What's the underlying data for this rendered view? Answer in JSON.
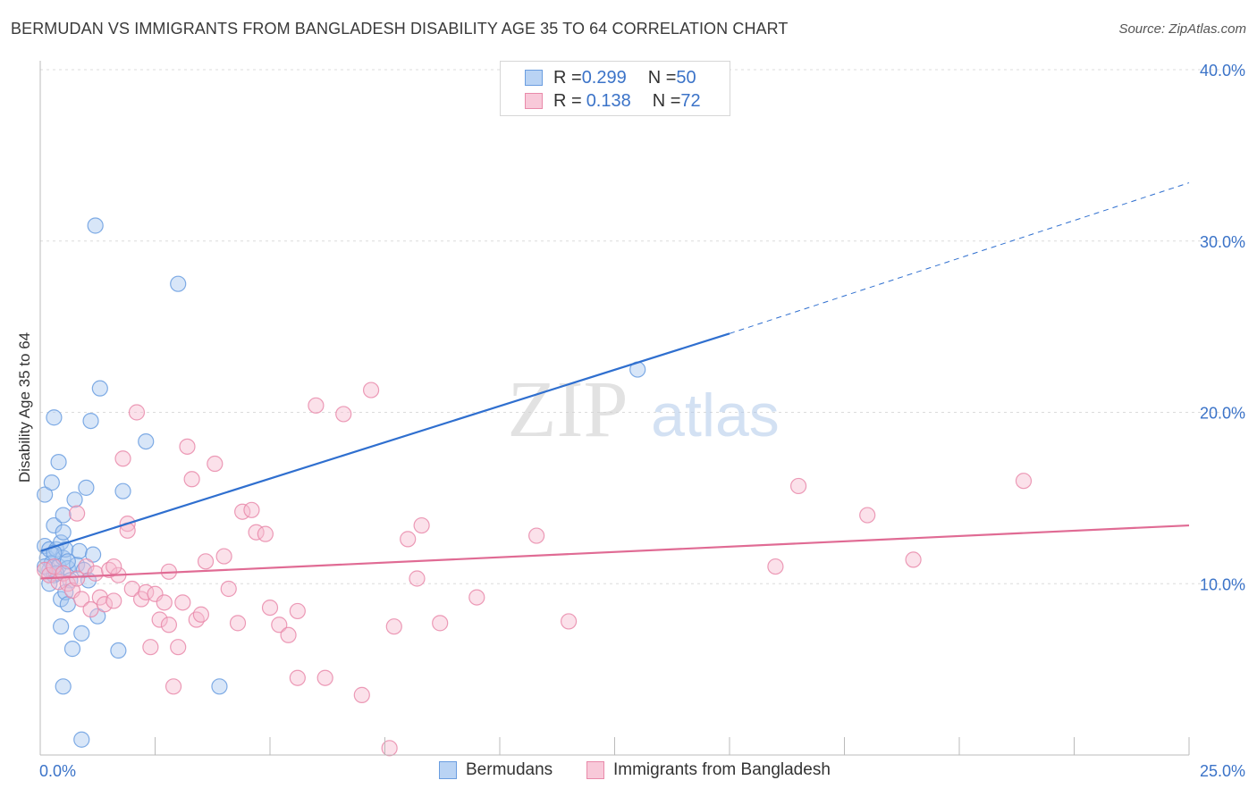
{
  "title": "BERMUDAN VS IMMIGRANTS FROM BANGLADESH DISABILITY AGE 35 TO 64 CORRELATION CHART",
  "source": "Source: ZipAtlas.com",
  "watermark": {
    "zip": "ZIP",
    "atlas": "atlas"
  },
  "legend_top": [
    {
      "r_label": "R = ",
      "r_value": "0.299",
      "n_label": "N = ",
      "n_value": "50"
    },
    {
      "r_label": "R = ",
      "r_value": "0.138",
      "n_label": "N = ",
      "n_value": "72"
    }
  ],
  "chart_data": {
    "type": "scatter",
    "title": "BERMUDAN VS IMMIGRANTS FROM BANGLADESH DISABILITY AGE 35 TO 64 CORRELATION CHART",
    "xlabel": "",
    "ylabel": "Disability Age 35 to 64",
    "xlim": [
      0,
      25
    ],
    "ylim": [
      0,
      40
    ],
    "x_tick_labels": [
      "0.0%",
      "25.0%"
    ],
    "y_tick_values": [
      10,
      20,
      30,
      40
    ],
    "y_tick_labels": [
      "10.0%",
      "20.0%",
      "30.0%",
      "40.0%"
    ],
    "legend_position": "bottom-center",
    "series": [
      {
        "name": "Bermudans",
        "color": "#6a9de0",
        "fill": "#a9c8f0",
        "r": 0.299,
        "n": 50,
        "trend": {
          "x0": 0,
          "y0": 11.9,
          "x1": 15.0,
          "y1": 24.6,
          "x_dash_end": 25.0,
          "y_dash_end": 33.4
        },
        "points": [
          [
            0.1,
            12.2
          ],
          [
            0.15,
            11.5
          ],
          [
            0.2,
            12.0
          ],
          [
            0.2,
            10.8
          ],
          [
            0.25,
            11.2
          ],
          [
            0.3,
            10.5
          ],
          [
            0.35,
            12.0
          ],
          [
            0.4,
            11.0
          ],
          [
            0.5,
            11.5
          ],
          [
            0.6,
            10.9
          ],
          [
            0.1,
            15.2
          ],
          [
            0.25,
            15.9
          ],
          [
            0.3,
            13.4
          ],
          [
            0.45,
            12.4
          ],
          [
            0.5,
            14.0
          ],
          [
            0.5,
            13.0
          ],
          [
            0.3,
            19.7
          ],
          [
            0.4,
            17.1
          ],
          [
            0.55,
            12.0
          ],
          [
            0.65,
            10.2
          ],
          [
            0.45,
            9.1
          ],
          [
            0.55,
            9.5
          ],
          [
            0.6,
            8.8
          ],
          [
            0.75,
            14.9
          ],
          [
            0.8,
            11.1
          ],
          [
            0.85,
            11.9
          ],
          [
            0.95,
            10.8
          ],
          [
            1.0,
            15.6
          ],
          [
            1.05,
            10.2
          ],
          [
            1.1,
            19.5
          ],
          [
            1.15,
            11.7
          ],
          [
            1.25,
            8.1
          ],
          [
            1.3,
            21.4
          ],
          [
            1.7,
            6.1
          ],
          [
            1.8,
            15.4
          ],
          [
            2.3,
            18.3
          ],
          [
            3.0,
            27.5
          ],
          [
            1.2,
            30.9
          ],
          [
            0.45,
            7.5
          ],
          [
            0.7,
            6.2
          ],
          [
            0.9,
            7.1
          ],
          [
            0.5,
            4.0
          ],
          [
            0.9,
            0.9
          ],
          [
            3.9,
            4.0
          ],
          [
            0.1,
            11.0
          ],
          [
            0.35,
            10.6
          ],
          [
            0.6,
            11.3
          ],
          [
            0.2,
            10.0
          ],
          [
            13.0,
            22.5
          ],
          [
            0.3,
            11.8
          ]
        ]
      },
      {
        "name": "Immigrants from Bangladesh",
        "color": "#e98aaa",
        "fill": "#f6bdd0",
        "r": 0.138,
        "n": 72,
        "trend": {
          "x0": 0,
          "y0": 10.3,
          "x1": 25.0,
          "y1": 13.4
        },
        "points": [
          [
            0.1,
            10.8
          ],
          [
            0.2,
            10.5
          ],
          [
            0.3,
            11.0
          ],
          [
            0.4,
            10.1
          ],
          [
            0.5,
            10.6
          ],
          [
            0.6,
            10.0
          ],
          [
            0.7,
            9.6
          ],
          [
            0.8,
            10.3
          ],
          [
            0.9,
            9.1
          ],
          [
            1.0,
            11.0
          ],
          [
            1.1,
            8.5
          ],
          [
            1.2,
            10.6
          ],
          [
            1.3,
            9.2
          ],
          [
            1.4,
            8.8
          ],
          [
            1.5,
            10.8
          ],
          [
            1.6,
            9.0
          ],
          [
            1.7,
            10.5
          ],
          [
            1.8,
            17.3
          ],
          [
            1.9,
            13.5
          ],
          [
            2.0,
            9.7
          ],
          [
            2.1,
            20.0
          ],
          [
            2.2,
            9.1
          ],
          [
            2.3,
            9.5
          ],
          [
            2.4,
            6.3
          ],
          [
            2.5,
            9.4
          ],
          [
            2.6,
            7.9
          ],
          [
            2.7,
            8.9
          ],
          [
            2.8,
            10.7
          ],
          [
            2.9,
            4.0
          ],
          [
            3.0,
            6.3
          ],
          [
            3.1,
            8.9
          ],
          [
            3.2,
            18.0
          ],
          [
            3.3,
            16.1
          ],
          [
            3.4,
            7.9
          ],
          [
            3.5,
            8.2
          ],
          [
            3.6,
            11.3
          ],
          [
            3.8,
            17.0
          ],
          [
            4.0,
            11.6
          ],
          [
            4.1,
            9.7
          ],
          [
            4.3,
            7.7
          ],
          [
            4.4,
            14.2
          ],
          [
            4.6,
            14.3
          ],
          [
            4.7,
            13.0
          ],
          [
            4.9,
            12.9
          ],
          [
            5.0,
            8.6
          ],
          [
            5.2,
            7.6
          ],
          [
            5.4,
            7.0
          ],
          [
            5.6,
            8.4
          ],
          [
            6.0,
            20.4
          ],
          [
            6.2,
            4.5
          ],
          [
            6.6,
            19.9
          ],
          [
            7.0,
            3.5
          ],
          [
            7.2,
            21.3
          ],
          [
            7.6,
            0.4
          ],
          [
            7.7,
            7.5
          ],
          [
            8.0,
            12.6
          ],
          [
            8.2,
            10.3
          ],
          [
            8.3,
            13.4
          ],
          [
            8.7,
            7.7
          ],
          [
            9.5,
            9.2
          ],
          [
            10.8,
            12.8
          ],
          [
            11.5,
            7.8
          ],
          [
            16.0,
            11.0
          ],
          [
            16.5,
            15.7
          ],
          [
            18.0,
            14.0
          ],
          [
            19.0,
            11.4
          ],
          [
            21.4,
            16.0
          ],
          [
            0.8,
            14.1
          ],
          [
            1.6,
            11.0
          ],
          [
            1.9,
            13.1
          ],
          [
            5.6,
            4.5
          ],
          [
            2.8,
            7.6
          ]
        ]
      }
    ]
  }
}
